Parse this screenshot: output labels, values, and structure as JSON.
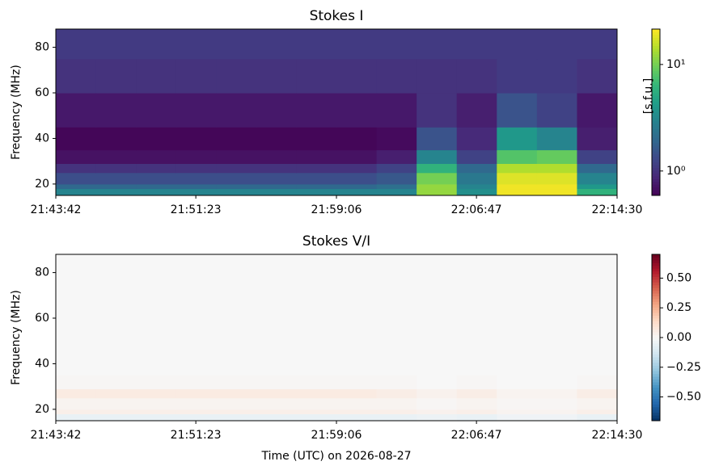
{
  "chart_data": [
    {
      "type": "heatmap",
      "title": "Stokes I",
      "y_label": "Frequency (MHz)",
      "colorbar_label": "[s.f.u.]",
      "colormap": "viridis",
      "zscale": "log",
      "zlim": [
        0.59,
        21.5
      ],
      "zticks": [
        {
          "value": 1,
          "label": "10⁰"
        },
        {
          "value": 10,
          "label": "10¹"
        }
      ],
      "xlim": [
        "21:43:42",
        "22:14:30"
      ],
      "xticks": [
        "21:43:42",
        "21:51:23",
        "21:59:06",
        "22:06:47",
        "22:14:30"
      ],
      "ylim": [
        15,
        88
      ],
      "yticks": [
        20,
        40,
        60,
        80
      ],
      "x": [
        "21:43:42",
        "21:45:54",
        "21:48:06",
        "21:50:18",
        "21:52:30",
        "21:54:42",
        "21:56:54",
        "21:59:06",
        "22:01:18",
        "22:03:30",
        "22:05:42",
        "22:07:54",
        "22:10:06",
        "22:12:18",
        "22:14:30"
      ],
      "y": [
        15,
        18,
        20,
        25,
        29,
        35,
        45,
        60,
        75,
        88
      ],
      "z": [
        [
          3,
          3,
          3,
          3,
          3,
          3,
          3,
          3,
          3,
          12,
          3.5,
          20,
          20,
          6
        ],
        [
          2,
          2,
          2,
          2,
          2,
          2,
          2,
          2,
          2.2,
          12,
          3,
          20,
          20,
          4
        ],
        [
          1.4,
          1.4,
          1.4,
          1.4,
          1.4,
          1.4,
          1.4,
          1.4,
          1.6,
          10,
          2.5,
          18,
          18,
          3
        ],
        [
          1,
          1,
          1,
          1,
          1,
          1,
          1,
          1,
          1.2,
          6,
          2,
          14,
          14,
          2
        ],
        [
          0.7,
          0.7,
          0.7,
          0.7,
          0.7,
          0.7,
          0.7,
          0.7,
          0.8,
          3,
          1.2,
          8,
          9,
          1.2
        ],
        [
          0.62,
          0.62,
          0.62,
          0.62,
          0.62,
          0.62,
          0.62,
          0.62,
          0.65,
          1.5,
          0.9,
          4,
          3,
          0.8
        ],
        [
          0.75,
          0.75,
          0.75,
          0.75,
          0.75,
          0.75,
          0.75,
          0.75,
          0.75,
          1,
          0.8,
          1.5,
          1.2,
          0.75
        ],
        [
          1,
          1,
          1,
          1,
          1,
          1,
          1,
          1,
          1,
          1,
          1,
          1.1,
          1.1,
          1
        ],
        [
          1.1,
          1.1,
          1.1,
          1.1,
          1.1,
          1.1,
          1.1,
          1.1,
          1.1,
          1.1,
          1.1,
          1.1,
          1.1,
          1.1
        ]
      ]
    },
    {
      "type": "heatmap",
      "title": "Stokes V/I",
      "y_label": "Frequency (MHz)",
      "x_label": "Time (UTC) on 2026-08-27",
      "colormap": "RdBu_r",
      "zscale": "linear",
      "zlim": [
        -0.7,
        0.7
      ],
      "zticks": [
        {
          "value": 0.5,
          "label": "0.50"
        },
        {
          "value": 0.25,
          "label": "0.25"
        },
        {
          "value": 0,
          "label": "0.00"
        },
        {
          "value": -0.25,
          "label": "−0.25"
        },
        {
          "value": -0.5,
          "label": "−0.50"
        }
      ],
      "xlim": [
        "21:43:42",
        "22:14:30"
      ],
      "xticks": [
        "21:43:42",
        "21:51:23",
        "21:59:06",
        "22:06:47",
        "22:14:30"
      ],
      "ylim": [
        15,
        88
      ],
      "yticks": [
        20,
        40,
        60,
        80
      ],
      "x": [
        "21:43:42",
        "21:45:54",
        "21:48:06",
        "21:50:18",
        "21:52:30",
        "21:54:42",
        "21:56:54",
        "21:59:06",
        "22:01:18",
        "22:03:30",
        "22:05:42",
        "22:07:54",
        "22:10:06",
        "22:12:18",
        "22:14:30"
      ],
      "y": [
        15,
        18,
        20,
        25,
        29,
        35,
        45,
        60,
        75,
        88
      ],
      "z": [
        [
          -0.05,
          -0.05,
          -0.05,
          -0.05,
          -0.05,
          -0.05,
          -0.05,
          -0.05,
          -0.05,
          -0.04,
          -0.05,
          -0.03,
          -0.03,
          -0.05
        ],
        [
          0.04,
          0.04,
          0.04,
          0.04,
          0.04,
          0.04,
          0.04,
          0.04,
          0.04,
          0.03,
          0.04,
          0.02,
          0.02,
          0.04
        ],
        [
          0.02,
          0.02,
          0.02,
          0.02,
          0.02,
          0.02,
          0.02,
          0.02,
          0.02,
          0.01,
          0.02,
          0.01,
          0.01,
          0.02
        ],
        [
          0.06,
          0.06,
          0.06,
          0.06,
          0.06,
          0.06,
          0.06,
          0.06,
          0.05,
          0.03,
          0.05,
          0.02,
          0.02,
          0.05
        ],
        [
          0.01,
          0.01,
          0.01,
          0.01,
          0.01,
          0.01,
          0.01,
          0.01,
          0.01,
          0,
          0.01,
          0,
          0,
          0.01
        ],
        [
          0,
          0,
          0,
          0,
          0,
          0,
          0,
          0,
          0,
          0,
          0,
          0,
          0,
          0
        ],
        [
          0,
          0,
          0,
          0,
          0,
          0,
          0,
          0,
          0,
          0,
          0,
          0,
          0,
          0
        ],
        [
          0,
          0,
          0,
          0,
          0,
          0,
          0,
          0,
          0,
          0,
          0,
          0,
          0,
          0
        ],
        [
          0,
          0,
          0,
          0,
          0,
          0,
          0,
          0,
          0,
          0,
          0,
          0,
          0,
          0
        ]
      ]
    }
  ]
}
